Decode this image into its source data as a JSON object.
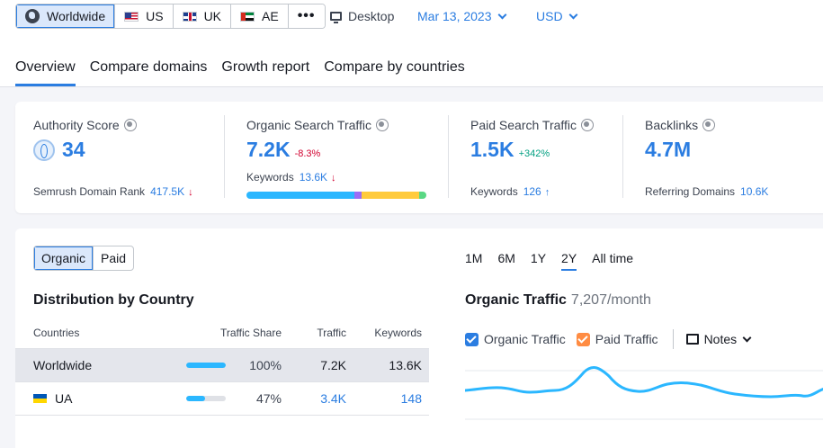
{
  "regions": [
    {
      "label": "Worldwide",
      "active": true
    },
    {
      "label": "US"
    },
    {
      "label": "UK"
    },
    {
      "label": "AE"
    }
  ],
  "more_label": "•••",
  "device": "Desktop",
  "date": "Mar 13, 2023",
  "currency": "USD",
  "tabs": [
    "Overview",
    "Compare domains",
    "Growth report",
    "Compare by countries"
  ],
  "metrics": {
    "authority": {
      "label": "Authority Score",
      "value": "34",
      "sub_label": "Semrush Domain Rank",
      "sub_value": "417.5K"
    },
    "organic": {
      "label": "Organic Search Traffic",
      "value": "7.2K",
      "delta": "-8.3%",
      "sub_label": "Keywords",
      "sub_value": "13.6K",
      "keyword_distribution": [
        {
          "share": 0.6,
          "color": "#2bb7ff"
        },
        {
          "share": 0.04,
          "color": "#9b6cf5"
        },
        {
          "share": 0.32,
          "color": "#ffcb3d"
        },
        {
          "share": 0.04,
          "color": "#59d884"
        }
      ]
    },
    "paid": {
      "label": "Paid Search Traffic",
      "value": "1.5K",
      "delta": "+342%",
      "sub_label": "Keywords",
      "sub_value": "126"
    },
    "backlinks": {
      "label": "Backlinks",
      "value": "4.7M",
      "sub_label": "Referring Domains",
      "sub_value": "10.6K"
    }
  },
  "traffic_type": [
    "Organic",
    "Paid"
  ],
  "distribution": {
    "title": "Distribution by Country",
    "headers": {
      "countries": "Countries",
      "share": "Traffic Share",
      "traffic": "Traffic",
      "keywords": "Keywords"
    },
    "rows": [
      {
        "country": "Worldwide",
        "share_pct": 100,
        "share": "100%",
        "traffic": "7.2K",
        "keywords": "13.6K"
      },
      {
        "country": "UA",
        "share_pct": 47,
        "share": "47%",
        "traffic": "3.4K",
        "keywords": "148"
      }
    ]
  },
  "periods": [
    "1M",
    "6M",
    "1Y",
    "2Y",
    "All time"
  ],
  "chart": {
    "title": "Organic Traffic",
    "subtitle": "7,207/month",
    "legend": [
      {
        "label": "Organic Traffic",
        "color": "#2b7de1"
      },
      {
        "label": "Paid Traffic",
        "color": "#ff8c43"
      }
    ],
    "notes_label": "Notes",
    "line_color": "#2bb7ff"
  }
}
